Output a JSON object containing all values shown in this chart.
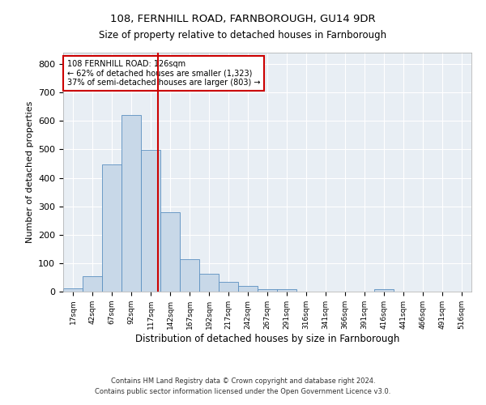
{
  "title_line1": "108, FERNHILL ROAD, FARNBOROUGH, GU14 9DR",
  "title_line2": "Size of property relative to detached houses in Farnborough",
  "xlabel": "Distribution of detached houses by size in Farnborough",
  "ylabel": "Number of detached properties",
  "footnote1": "Contains HM Land Registry data © Crown copyright and database right 2024.",
  "footnote2": "Contains public sector information licensed under the Open Government Licence v3.0.",
  "annotation_line1": "108 FERNHILL ROAD: 126sqm",
  "annotation_line2": "← 62% of detached houses are smaller (1,323)",
  "annotation_line3": "37% of semi-detached houses are larger (803) →",
  "bar_color": "#c8d8e8",
  "bar_edge_color": "#5a8fc0",
  "vline_color": "#cc0000",
  "annotation_box_color": "#cc0000",
  "bg_color": "#e8eef4",
  "grid_color": "#ffffff",
  "bin_labels": [
    "17sqm",
    "42sqm",
    "67sqm",
    "92sqm",
    "117sqm",
    "142sqm",
    "167sqm",
    "192sqm",
    "217sqm",
    "242sqm",
    "267sqm",
    "291sqm",
    "316sqm",
    "341sqm",
    "366sqm",
    "391sqm",
    "416sqm",
    "441sqm",
    "466sqm",
    "491sqm",
    "516sqm"
  ],
  "bar_heights": [
    12,
    55,
    447,
    622,
    498,
    278,
    115,
    62,
    35,
    20,
    9,
    9,
    0,
    0,
    0,
    0,
    8,
    0,
    0,
    0,
    0
  ],
  "vline_x": 4.36,
  "ylim": [
    0,
    840
  ],
  "yticks": [
    0,
    100,
    200,
    300,
    400,
    500,
    600,
    700,
    800
  ]
}
